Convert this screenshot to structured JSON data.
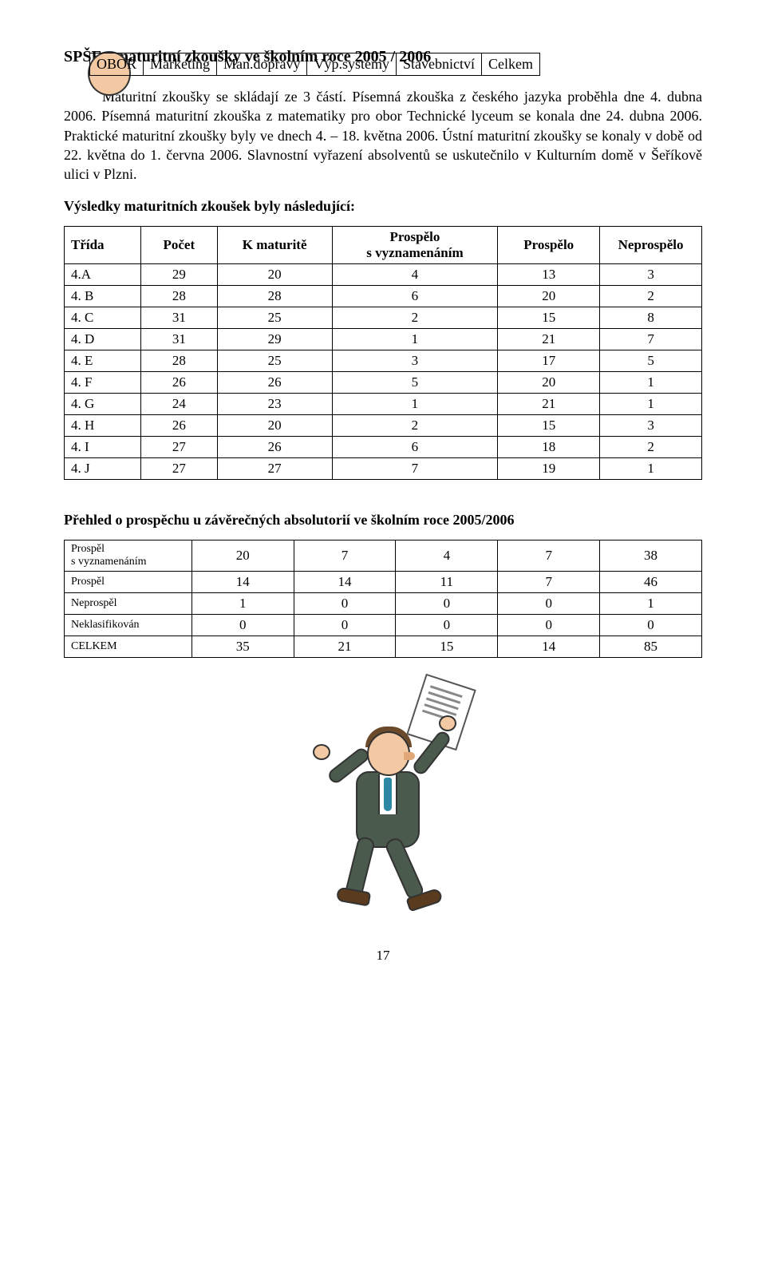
{
  "title": "SPŠE - maturitní zkoušky ve školním roce 2005 / 2006",
  "paragraph1": "Maturitní zkoušky se skládají ze 3 částí. Písemná zkouška z českého jazyka proběhla dne 4. dubna 2006. Písemná maturitní zkouška z matematiky pro obor Technické lyceum se konala dne 24. dubna 2006. Praktické maturitní zkoušky byly ve dnech 4. – 18. května 2006. Ústní maturitní zkoušky se konaly v době od 22. května do 1. června 2006. Slavnostní vyřazení absolventů se uskutečnilo v Kulturním domě v Šeříkově ulici v Plzni.",
  "subheading1": "Výsledky maturitních zkoušek byly následující:",
  "table1": {
    "columns": [
      "Třída",
      "Počet",
      "K maturitě",
      "Prospělo s vyznamenáním",
      "Prospělo",
      "Neprospělo"
    ],
    "header_line1": [
      "Třída",
      "Počet",
      "K maturitě",
      "Prospělo",
      "Prospělo",
      "Neprospělo"
    ],
    "header_line2_col3": "s vyznamenáním",
    "rows": [
      [
        "4.A",
        "29",
        "20",
        "4",
        "13",
        "3"
      ],
      [
        "4. B",
        "28",
        "28",
        "6",
        "20",
        "2"
      ],
      [
        "4. C",
        "31",
        "25",
        "2",
        "15",
        "8"
      ],
      [
        "4. D",
        "31",
        "29",
        "1",
        "21",
        "7"
      ],
      [
        "4. E",
        "28",
        "25",
        "3",
        "17",
        "5"
      ],
      [
        "4. F",
        "26",
        "26",
        "5",
        "20",
        "1"
      ],
      [
        "4. G",
        "24",
        "23",
        "1",
        "21",
        "1"
      ],
      [
        "4. H",
        "26",
        "20",
        "2",
        "15",
        "3"
      ],
      [
        "4. I",
        "27",
        "26",
        "6",
        "18",
        "2"
      ],
      [
        "4. J",
        "27",
        "27",
        "7",
        "19",
        "1"
      ]
    ]
  },
  "subheading2": "Přehled o prospěchu u závěrečných absolutorií ve školním roce 2005/2006",
  "table2": {
    "columns": [
      "OBOR",
      "Marketing",
      "Man.dopravy",
      "Výp.systémy",
      "Stavebnictví",
      "Celkem"
    ],
    "rows": [
      {
        "label_line1": "Prospěl",
        "label_line2": "s vyznamenáním",
        "vals": [
          "20",
          "7",
          "4",
          "7",
          "38"
        ],
        "small": true
      },
      {
        "label_line1": "Prospěl",
        "vals": [
          "14",
          "14",
          "11",
          "7",
          "46"
        ],
        "small": true
      },
      {
        "label_line1": "Neprospěl",
        "vals": [
          "1",
          "0",
          "0",
          "0",
          "1"
        ],
        "small": true
      },
      {
        "label_line1": "Neklasifikován",
        "vals": [
          "0",
          "0",
          "0",
          "0",
          "0"
        ],
        "small": true
      },
      {
        "label_line1": "CELKEM",
        "vals": [
          "35",
          "21",
          "15",
          "14",
          "85"
        ],
        "small": true
      }
    ]
  },
  "page_number": "17"
}
